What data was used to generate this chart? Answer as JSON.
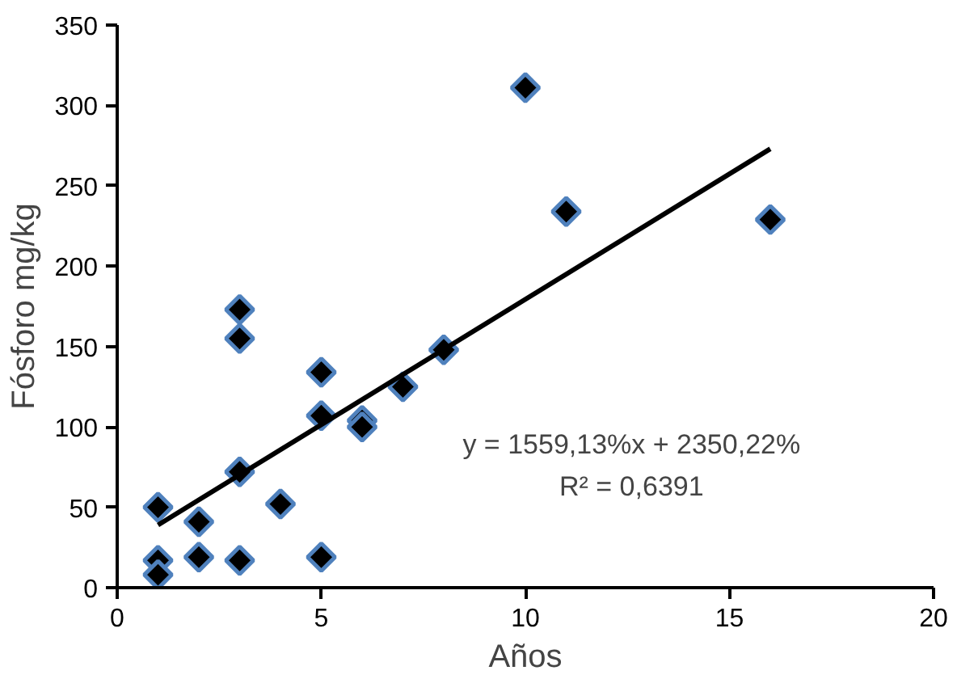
{
  "chart_data": {
    "type": "scatter",
    "xlabel": "Años",
    "ylabel": "Fósforo mg/kg",
    "xlim": [
      0,
      20
    ],
    "ylim": [
      0,
      350
    ],
    "xticks": [
      0,
      5,
      10,
      15,
      20
    ],
    "yticks": [
      0,
      50,
      100,
      150,
      200,
      250,
      300,
      350
    ],
    "grid": false,
    "series": [
      {
        "marker": "diamond",
        "color": "#000000",
        "x": [
          1,
          1,
          1,
          2,
          2,
          3,
          3,
          3,
          3,
          4,
          5,
          5,
          5,
          6,
          6,
          7,
          8,
          10,
          11,
          16
        ],
        "values": [
          50,
          17,
          8,
          41,
          19,
          173,
          155,
          72,
          17,
          52,
          134,
          107,
          19,
          104,
          100,
          125,
          148,
          311,
          234,
          229
        ]
      },
      {
        "type": "line",
        "marker": "none",
        "color": "#000000",
        "x": [
          1,
          16
        ],
        "values": [
          39,
          273
        ]
      }
    ],
    "annotations": [
      "y = 1559,13%x + 2350,22%",
      "R² = 0,6391"
    ]
  }
}
